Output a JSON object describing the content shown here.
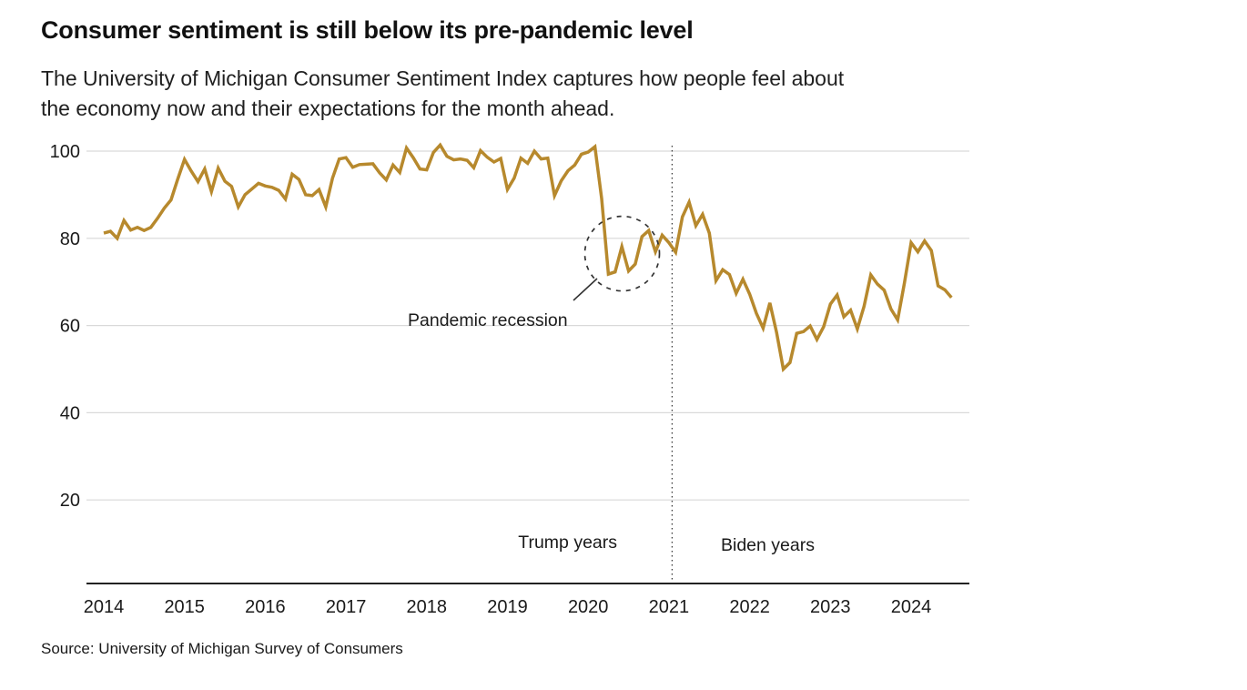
{
  "header": {
    "title": "Consumer sentiment is still below its pre-pandemic level",
    "subtitle_lines": [
      "The University of Michigan Consumer Sentiment Index captures how people feel about",
      "the economy now and their expectations for the month ahead."
    ]
  },
  "source": "Source: University of Michigan Survey of Consumers",
  "chart_data": {
    "type": "line",
    "title": "Consumer sentiment is still below its pre-pandemic level",
    "ylabel": "",
    "xlabel": "",
    "frequency": "monthly",
    "start": "2014-01",
    "end": "2024-07",
    "x_ticks": [
      "2014",
      "2015",
      "2016",
      "2017",
      "2018",
      "2019",
      "2020",
      "2021",
      "2022",
      "2023",
      "2024"
    ],
    "y_ticks": [
      20,
      40,
      60,
      80,
      100
    ],
    "ylim": [
      0,
      105
    ],
    "grid": "horizontal",
    "legend": "none",
    "series": [
      {
        "name": "University of Michigan Consumer Sentiment Index",
        "values": [
          81.2,
          81.6,
          80.0,
          84.1,
          81.9,
          82.5,
          81.8,
          82.5,
          84.6,
          86.9,
          88.8,
          93.6,
          98.1,
          95.4,
          93.0,
          95.9,
          90.7,
          96.1,
          93.1,
          91.9,
          87.2,
          90.0,
          91.3,
          92.6,
          92.0,
          91.7,
          91.0,
          89.0,
          94.7,
          93.5,
          90.0,
          89.8,
          91.2,
          87.2,
          93.8,
          98.2,
          98.5,
          96.3,
          96.9,
          97.0,
          97.1,
          95.0,
          93.4,
          96.8,
          95.1,
          100.7,
          98.5,
          95.9,
          95.7,
          99.7,
          101.4,
          98.8,
          98.0,
          98.2,
          97.9,
          96.2,
          100.1,
          98.6,
          97.5,
          98.3,
          91.2,
          93.8,
          98.4,
          97.2,
          100.0,
          98.2,
          98.4,
          89.8,
          93.2,
          95.5,
          96.8,
          99.3,
          99.8,
          101.0,
          89.1,
          71.8,
          72.3,
          78.1,
          72.5,
          74.1,
          80.4,
          81.8,
          76.9,
          80.7,
          79.0,
          76.8,
          84.9,
          88.3,
          82.9,
          85.5,
          81.2,
          70.3,
          72.8,
          71.7,
          67.4,
          70.6,
          67.2,
          62.8,
          59.4,
          65.2,
          58.4,
          50.0,
          51.5,
          58.2,
          58.6,
          59.9,
          56.8,
          59.7,
          64.9,
          67.0,
          62.0,
          63.5,
          59.2,
          64.4,
          71.6,
          69.5,
          68.1,
          63.8,
          61.3,
          69.7,
          79.0,
          76.9,
          79.4,
          77.2,
          69.1,
          68.2,
          66.4
        ]
      }
    ],
    "annotations": {
      "pandemic_label": "Pandemic recession",
      "left_era_label": "Trump years",
      "right_era_label": "Biden years",
      "divider_year": 2021.04,
      "circle_center_year": 2020.42,
      "circle_center_value": 76.5
    },
    "colors": {
      "line": "#b7892d",
      "grid": "#d9d9d9",
      "axis": "#222222",
      "annotation": "#333333"
    }
  }
}
